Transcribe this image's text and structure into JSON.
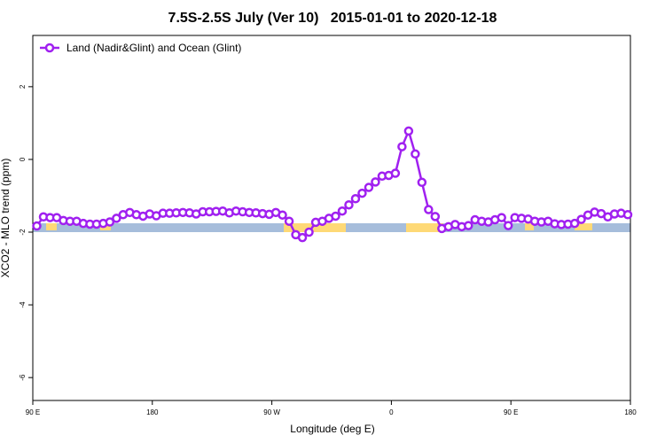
{
  "chart_data": {
    "type": "line",
    "title": "7.5S-2.5S July (Ver 10)   2015-01-01 to 2020-12-18",
    "xlabel": "Longitude (deg E)",
    "ylabel": "XCO2 - MLO trend (ppm)",
    "xlim": [
      90,
      540
    ],
    "ylim": [
      -6.63,
      3.41
    ],
    "xticks": [
      {
        "value": 90,
        "label": "90 E"
      },
      180,
      {
        "value": 270,
        "label": "90 W"
      },
      {
        "value": 360,
        "label": "0"
      },
      {
        "value": 450,
        "label": "90 E"
      },
      {
        "value": 540,
        "label": "180"
      }
    ],
    "yticks": [
      2,
      0,
      -2,
      -4,
      -6
    ],
    "legend": "top-left",
    "series": [
      {
        "name": "Land (Nadir&Glint) and Ocean (Glint)",
        "color": "#a020f0",
        "x": [
          93,
          98,
          103,
          108,
          113,
          118,
          123,
          128,
          133,
          138,
          143,
          148,
          153,
          158,
          163,
          168,
          173,
          178,
          183,
          188,
          193,
          198,
          203,
          208,
          213,
          218,
          223,
          228,
          233,
          238,
          243,
          248,
          253,
          258,
          263,
          268,
          273,
          278,
          283,
          288,
          293,
          298,
          303,
          308,
          313,
          318,
          323,
          328,
          333,
          338,
          343,
          348,
          353,
          358,
          363,
          368,
          373,
          378,
          383,
          388,
          393,
          398,
          403,
          408,
          413,
          418,
          423,
          428,
          433,
          438,
          443,
          448,
          453,
          458,
          463,
          468,
          473,
          478,
          483,
          488,
          493,
          498,
          503,
          508,
          513,
          518,
          523,
          528,
          533,
          538
        ],
        "values": [
          -1.83,
          -1.58,
          -1.6,
          -1.6,
          -1.68,
          -1.7,
          -1.7,
          -1.76,
          -1.78,
          -1.78,
          -1.76,
          -1.72,
          -1.62,
          -1.52,
          -1.46,
          -1.52,
          -1.56,
          -1.5,
          -1.55,
          -1.48,
          -1.48,
          -1.47,
          -1.46,
          -1.47,
          -1.5,
          -1.44,
          -1.44,
          -1.43,
          -1.42,
          -1.47,
          -1.42,
          -1.44,
          -1.46,
          -1.47,
          -1.49,
          -1.51,
          -1.46,
          -1.53,
          -1.7,
          -2.07,
          -2.15,
          -2.0,
          -1.73,
          -1.7,
          -1.62,
          -1.56,
          -1.42,
          -1.25,
          -1.08,
          -0.93,
          -0.77,
          -0.62,
          -0.46,
          -0.44,
          -0.38,
          0.35,
          0.78,
          0.15,
          -0.63,
          -1.38,
          -1.57,
          -1.9,
          -1.85,
          -1.79,
          -1.85,
          -1.82,
          -1.66,
          -1.7,
          -1.72,
          -1.66,
          -1.6,
          -1.82,
          -1.6,
          -1.62,
          -1.64,
          -1.7,
          -1.72,
          -1.7,
          -1.77,
          -1.79,
          -1.78,
          -1.76,
          -1.65,
          -1.53,
          -1.45,
          -1.49,
          -1.58,
          -1.5,
          -1.48,
          -1.52
        ]
      }
    ]
  }
}
